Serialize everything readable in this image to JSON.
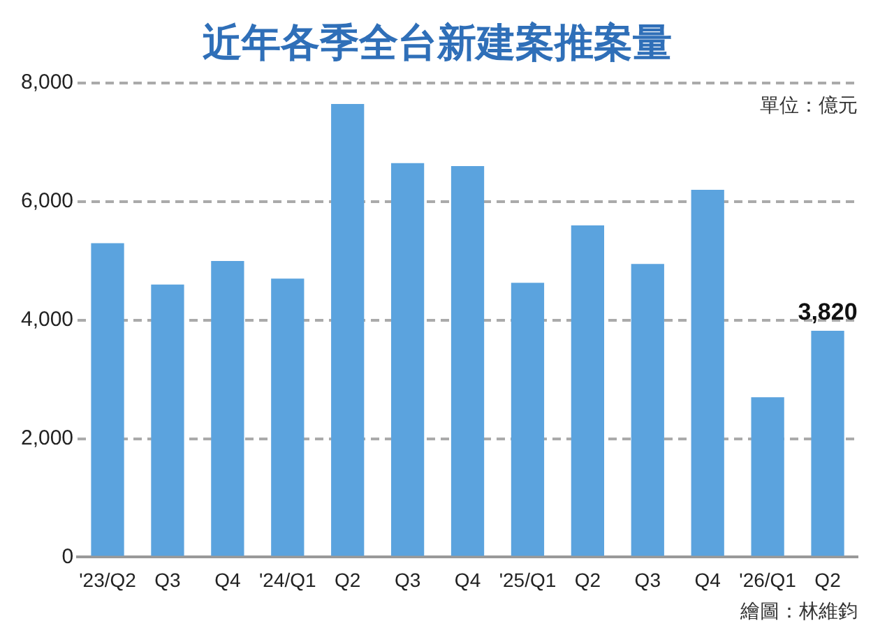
{
  "chart_data": {
    "type": "bar",
    "title": "近年各季全台新建案推案量",
    "categories": [
      "'23/Q2",
      "Q3",
      "Q4",
      "'24/Q1",
      "Q2",
      "Q3",
      "Q4",
      "'25/Q1",
      "Q2",
      "Q3",
      "Q4",
      "'26/Q1",
      "Q2"
    ],
    "values": [
      5300,
      4600,
      5000,
      4700,
      7650,
      6650,
      6600,
      4630,
      5600,
      4950,
      6200,
      2700,
      3820
    ],
    "value_labels": [
      null,
      null,
      null,
      null,
      null,
      null,
      null,
      null,
      null,
      null,
      null,
      null,
      "3,820"
    ],
    "color": "#5ba3de",
    "ylim": [
      0,
      8000
    ],
    "yticks": [
      {
        "value": 0,
        "label": "0"
      },
      {
        "value": 2000,
        "label": "2,000"
      },
      {
        "value": 4000,
        "label": "4,000"
      },
      {
        "value": 6000,
        "label": "6,000"
      },
      {
        "value": 8000,
        "label": "8,000"
      }
    ],
    "grid": "y",
    "line_style": "dashed",
    "annotations": [
      "單位：億元",
      "繪圖：林維鈞"
    ]
  }
}
